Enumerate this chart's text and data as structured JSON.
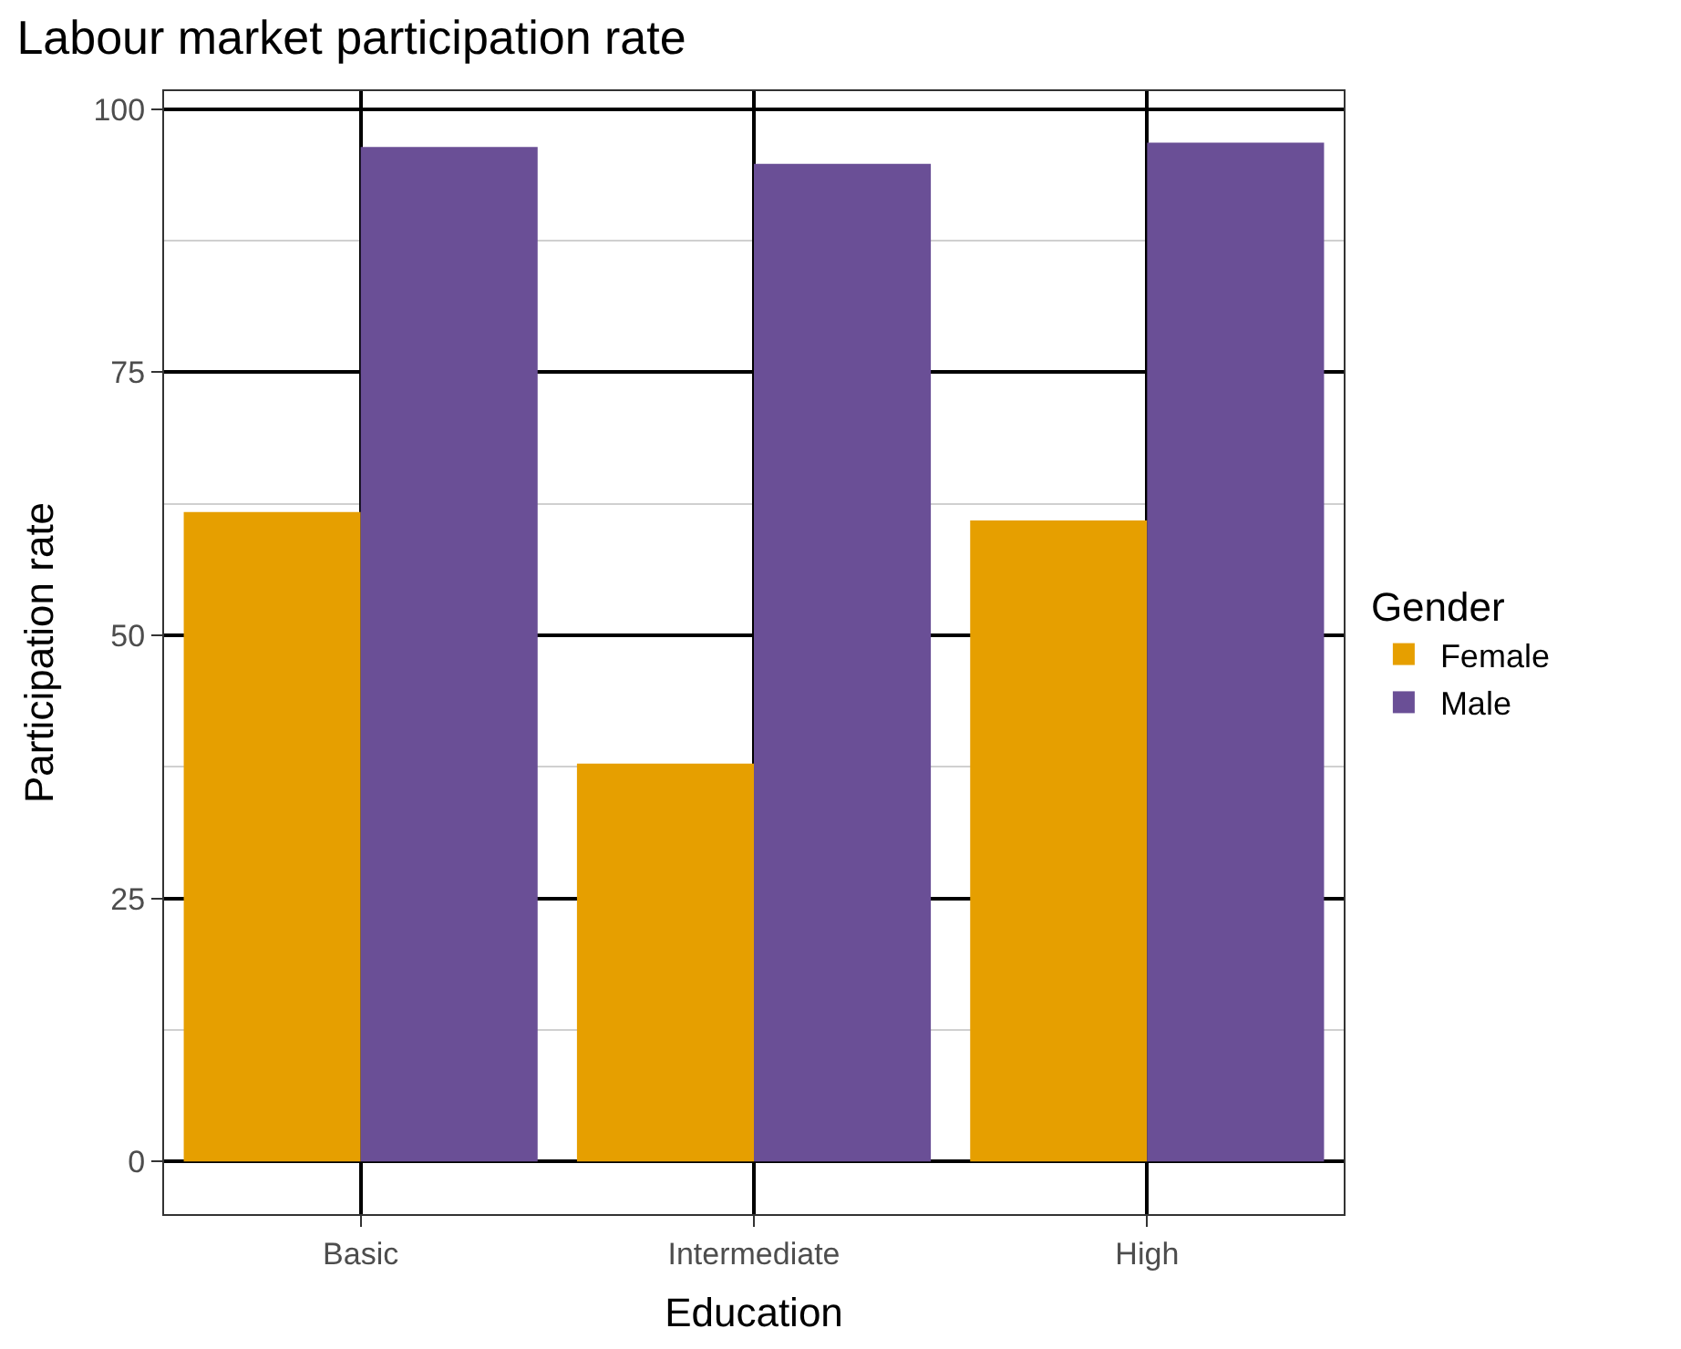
{
  "chart_data": {
    "type": "bar",
    "title": "Labour market participation rate",
    "xlabel": "Education",
    "ylabel": "Participation rate",
    "legend_title": "Gender",
    "categories": [
      "Basic",
      "Intermediate",
      "High"
    ],
    "series": [
      {
        "name": "Female",
        "color": "#e69f00",
        "values": [
          61.7,
          37.8,
          60.9
        ]
      },
      {
        "name": "Male",
        "color": "#6a4f96",
        "values": [
          96.4,
          94.8,
          96.8
        ]
      }
    ],
    "ylim": [
      -5,
      101.7
    ],
    "yticks": [
      0,
      25,
      50,
      75,
      100
    ],
    "grid": true,
    "legend": "right"
  }
}
